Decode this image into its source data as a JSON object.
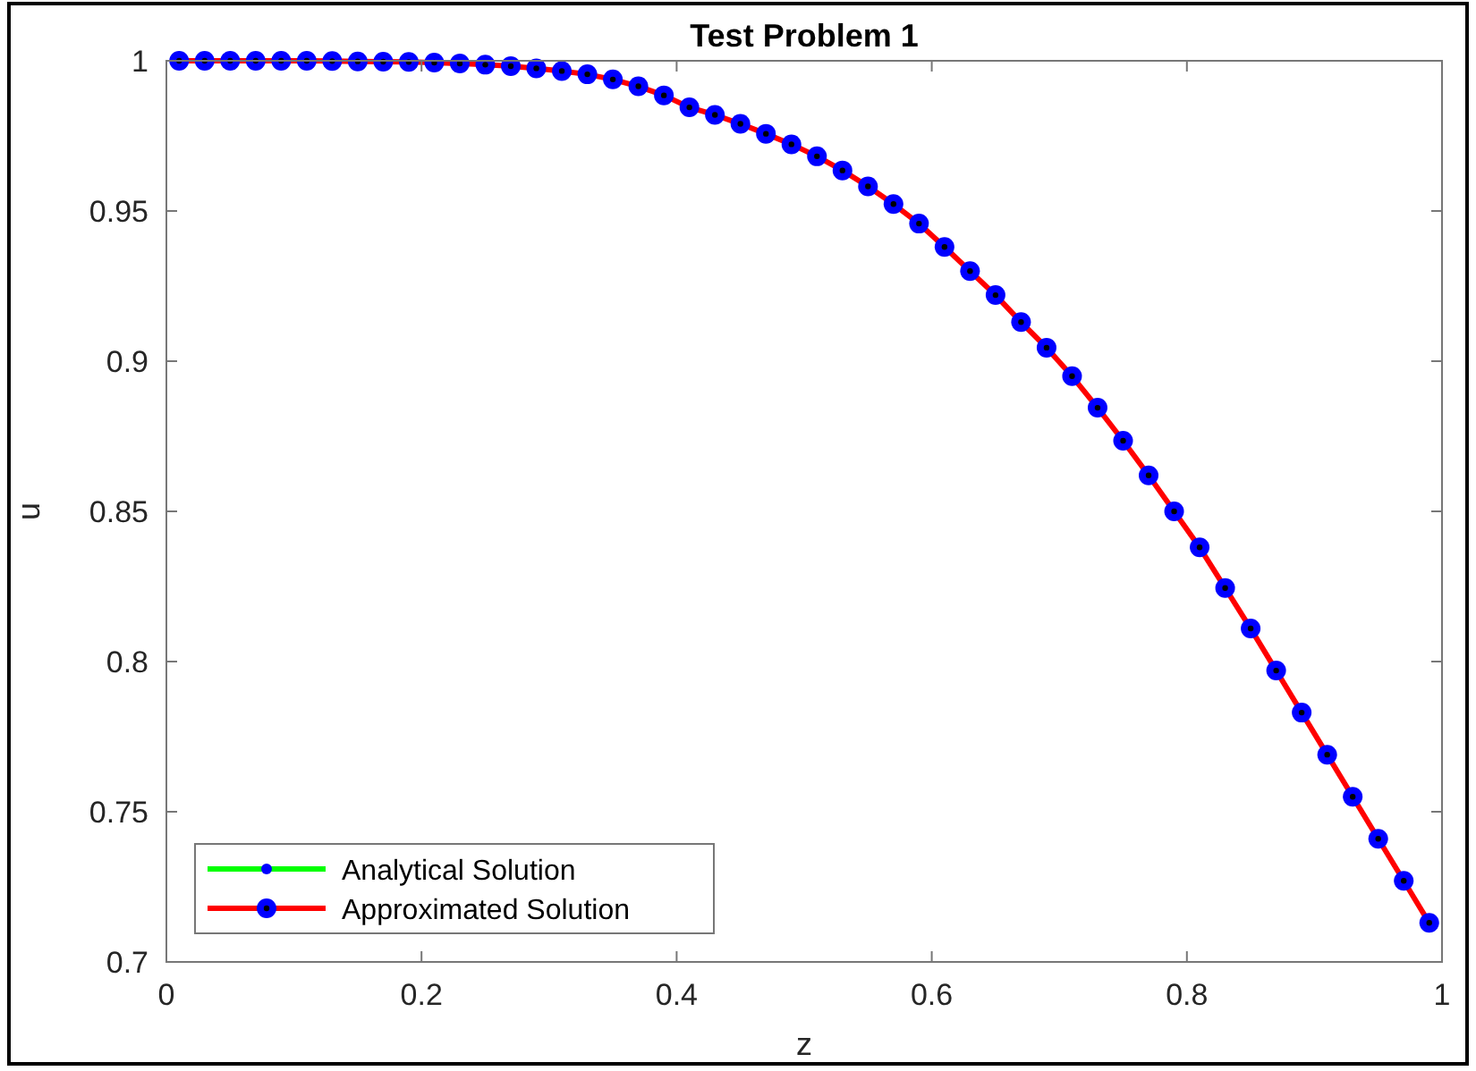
{
  "chart_data": {
    "type": "line",
    "title": "Test Problem 1",
    "xlabel": "z",
    "ylabel": "u",
    "x": [
      0.01,
      0.03,
      0.05,
      0.07,
      0.09,
      0.11,
      0.13,
      0.15,
      0.17,
      0.19,
      0.21,
      0.23,
      0.25,
      0.27,
      0.29,
      0.31,
      0.33,
      0.35,
      0.37,
      0.39,
      0.41,
      0.43,
      0.45,
      0.47,
      0.49,
      0.51,
      0.53,
      0.55,
      0.57,
      0.59,
      0.61,
      0.63,
      0.65,
      0.67,
      0.69,
      0.71,
      0.73,
      0.75,
      0.77,
      0.79,
      0.81,
      0.83,
      0.85,
      0.87,
      0.89,
      0.91,
      0.93,
      0.95,
      0.97,
      0.99
    ],
    "series": [
      {
        "name": "Analytical Solution",
        "color": "#00ff00",
        "marker": "circle",
        "values": [
          null,
          null,
          null,
          null,
          null,
          null,
          null,
          null,
          null,
          null,
          null,
          null,
          null,
          null,
          null,
          null,
          null,
          null,
          null,
          null,
          null,
          null,
          null,
          null,
          null,
          null,
          null,
          null,
          null,
          null,
          null,
          null,
          null,
          null,
          null,
          null,
          null,
          null,
          null,
          null,
          null,
          null,
          null,
          null,
          null,
          null,
          null,
          null,
          null,
          null
        ]
      },
      {
        "name": "Approximated Solution",
        "color": "#ff0000",
        "marker": "circle",
        "values": [
          1,
          1,
          1,
          1,
          1,
          1,
          0.9999,
          0.9998,
          0.9997,
          0.9996,
          0.9994,
          0.9991,
          0.9987,
          0.9982,
          0.9975,
          0.9966,
          0.9955,
          0.9938,
          0.9915,
          0.9885,
          0.9845,
          0.982,
          0.979,
          0.9757,
          0.9722,
          0.9682,
          0.9635,
          0.9582,
          0.9523,
          0.9458,
          0.938,
          0.93,
          0.922,
          0.913,
          0.9045,
          0.895,
          0.8845,
          0.8735,
          0.862,
          0.85,
          0.838,
          0.8245,
          0.811,
          0.797,
          0.783,
          0.769,
          0.755,
          0.741,
          0.727,
          0.713
        ]
      }
    ],
    "xlim": [
      0,
      1
    ],
    "xticks": [
      0,
      0.2,
      0.4,
      0.6,
      0.8,
      1
    ],
    "ylim": [
      0.7,
      1
    ],
    "yticks": [
      0.7,
      0.75,
      0.8,
      0.85,
      0.9,
      0.95,
      1
    ],
    "grid": false,
    "legend": "bottom left",
    "line_style": "solid"
  }
}
